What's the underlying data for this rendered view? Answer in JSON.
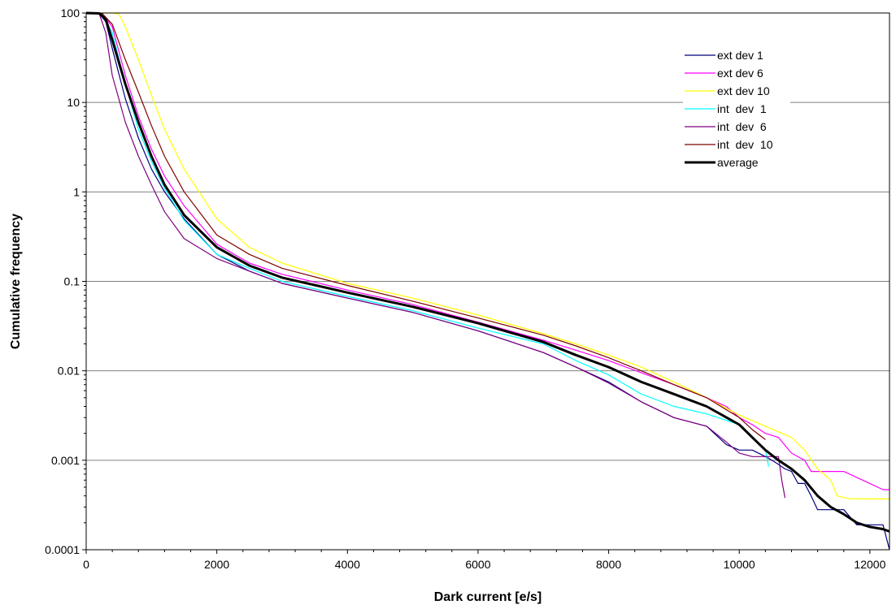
{
  "chart_data": {
    "type": "line",
    "title": "",
    "xlabel": "Dark current  [e/s]",
    "ylabel": "Cumulative frequency",
    "x_range": [
      0,
      12300
    ],
    "y_range": [
      0.0001,
      100
    ],
    "y_scale": "log",
    "x_ticks": [
      0,
      2000,
      4000,
      6000,
      8000,
      10000,
      12000
    ],
    "y_ticks": [
      100,
      10,
      1,
      0.1,
      0.01,
      0.001,
      0.0001
    ],
    "x_tick_labels": [
      "0",
      "2000",
      "4000",
      "6000",
      "8000",
      "10000",
      "12000"
    ],
    "y_tick_labels": [
      "100",
      "10",
      "1",
      "0.1",
      "0.01",
      "0.001",
      "0.0001"
    ],
    "grid": "horizontal major gridlines",
    "legend_position": "top-right",
    "series": [
      {
        "name": "ext dev 1",
        "color": "#000080",
        "width": 1.2,
        "x": [
          0,
          200,
          300,
          400,
          600,
          800,
          1000,
          1200,
          1500,
          2000,
          2500,
          3000,
          4000,
          5000,
          6000,
          7000,
          7500,
          8000,
          8500,
          9000,
          9500,
          9800,
          10000,
          10200,
          10400,
          10500,
          10600,
          10700,
          10800,
          10900,
          11000,
          11100,
          11200,
          11400,
          11500,
          11600,
          11800,
          12000,
          12200,
          12300
        ],
        "y": [
          100,
          98,
          80,
          40,
          11,
          4,
          1.8,
          1.0,
          0.5,
          0.2,
          0.13,
          0.095,
          0.065,
          0.045,
          0.028,
          0.016,
          0.011,
          0.0075,
          0.0045,
          0.003,
          0.0024,
          0.0015,
          0.0013,
          0.0013,
          0.0011,
          0.001,
          0.0009,
          0.0008,
          0.00075,
          0.00055,
          0.00055,
          0.0004,
          0.00028,
          0.00028,
          0.00028,
          0.00028,
          0.00019,
          0.00019,
          0.00019,
          0.0001
        ]
      },
      {
        "name": "ext dev 6",
        "color": "#FF00FF",
        "width": 1.2,
        "x": [
          0,
          250,
          400,
          600,
          800,
          1000,
          1200,
          1500,
          2000,
          2500,
          3000,
          4000,
          5000,
          6000,
          7000,
          7500,
          8000,
          8500,
          9000,
          9500,
          9800,
          10000,
          10200,
          10400,
          10600,
          10800,
          11000,
          11100,
          11300,
          11600,
          12000,
          12200,
          12300
        ],
        "y": [
          100,
          98,
          70,
          20,
          7,
          3,
          1.5,
          0.7,
          0.26,
          0.16,
          0.12,
          0.08,
          0.055,
          0.035,
          0.022,
          0.017,
          0.013,
          0.0095,
          0.007,
          0.005,
          0.004,
          0.003,
          0.0025,
          0.002,
          0.0018,
          0.0012,
          0.001,
          0.00075,
          0.00075,
          0.00075,
          0.00055,
          0.00047,
          0.00047
        ]
      },
      {
        "name": "ext dev 10",
        "color": "#FFFF00",
        "width": 1.2,
        "x": [
          0,
          400,
          500,
          600,
          800,
          1000,
          1200,
          1500,
          2000,
          2500,
          3000,
          4000,
          5000,
          6000,
          7000,
          7500,
          8000,
          8500,
          9000,
          9500,
          10000,
          10400,
          10800,
          11000,
          11200,
          11400,
          11500,
          11700,
          12000,
          12300
        ],
        "y": [
          100,
          100,
          98,
          70,
          30,
          12,
          5,
          1.8,
          0.5,
          0.24,
          0.16,
          0.095,
          0.065,
          0.042,
          0.026,
          0.02,
          0.015,
          0.011,
          0.0075,
          0.005,
          0.0032,
          0.0024,
          0.0018,
          0.0013,
          0.0008,
          0.0006,
          0.0004,
          0.00037,
          0.00037,
          0.00037
        ]
      },
      {
        "name": "int  dev  1",
        "color": "#00FFFF",
        "width": 1.2,
        "x": [
          0,
          250,
          400,
          600,
          800,
          1000,
          1200,
          1500,
          2000,
          2500,
          3000,
          4000,
          5000,
          6000,
          7000,
          7500,
          8000,
          8500,
          9000,
          9500,
          10000,
          10200,
          10400,
          10450
        ],
        "y": [
          100,
          98,
          60,
          16,
          5,
          2.2,
          1.1,
          0.48,
          0.2,
          0.14,
          0.1,
          0.068,
          0.047,
          0.03,
          0.02,
          0.013,
          0.009,
          0.0055,
          0.004,
          0.0033,
          0.0025,
          0.0018,
          0.0013,
          0.00085
        ]
      },
      {
        "name": "int  dev  6",
        "color": "#800080",
        "width": 1.2,
        "x": [
          0,
          200,
          300,
          400,
          600,
          800,
          1000,
          1200,
          1500,
          2000,
          2500,
          3000,
          4000,
          5000,
          6000,
          7000,
          7500,
          8000,
          8500,
          9000,
          9500,
          9800,
          10000,
          10200,
          10400,
          10600,
          10650,
          10700
        ],
        "y": [
          100,
          98,
          60,
          20,
          6,
          2.5,
          1.2,
          0.6,
          0.3,
          0.18,
          0.13,
          0.095,
          0.065,
          0.045,
          0.028,
          0.016,
          0.011,
          0.0073,
          0.0045,
          0.003,
          0.0024,
          0.0016,
          0.0012,
          0.0011,
          0.0011,
          0.0011,
          0.0006,
          0.00038
        ]
      },
      {
        "name": "int  dev  10",
        "color": "#800000",
        "width": 1.2,
        "x": [
          0,
          250,
          400,
          600,
          800,
          1000,
          1200,
          1500,
          2000,
          2500,
          3000,
          4000,
          5000,
          6000,
          7000,
          7500,
          8000,
          8500,
          9000,
          9500,
          10000,
          10200,
          10400
        ],
        "y": [
          100,
          98,
          75,
          30,
          13,
          5.5,
          2.5,
          1.0,
          0.33,
          0.2,
          0.14,
          0.09,
          0.06,
          0.039,
          0.025,
          0.019,
          0.014,
          0.01,
          0.007,
          0.005,
          0.003,
          0.0022,
          0.0017
        ]
      },
      {
        "name": "average",
        "color": "#000000",
        "width": 3,
        "x": [
          0,
          200,
          300,
          400,
          600,
          800,
          1000,
          1200,
          1500,
          2000,
          2500,
          3000,
          4000,
          5000,
          6000,
          7000,
          7500,
          8000,
          8500,
          9000,
          9500,
          10000,
          10200,
          10400,
          10600,
          10800,
          11000,
          11200,
          11400,
          11600,
          11800,
          12000,
          12200,
          12300
        ],
        "y": [
          100,
          99,
          85,
          50,
          16,
          6,
          2.5,
          1.2,
          0.55,
          0.24,
          0.15,
          0.11,
          0.075,
          0.052,
          0.034,
          0.021,
          0.015,
          0.011,
          0.0075,
          0.0055,
          0.004,
          0.0025,
          0.0018,
          0.0013,
          0.001,
          0.0008,
          0.0006,
          0.0004,
          0.0003,
          0.00025,
          0.0002,
          0.00018,
          0.00017,
          0.00016
        ]
      }
    ]
  }
}
